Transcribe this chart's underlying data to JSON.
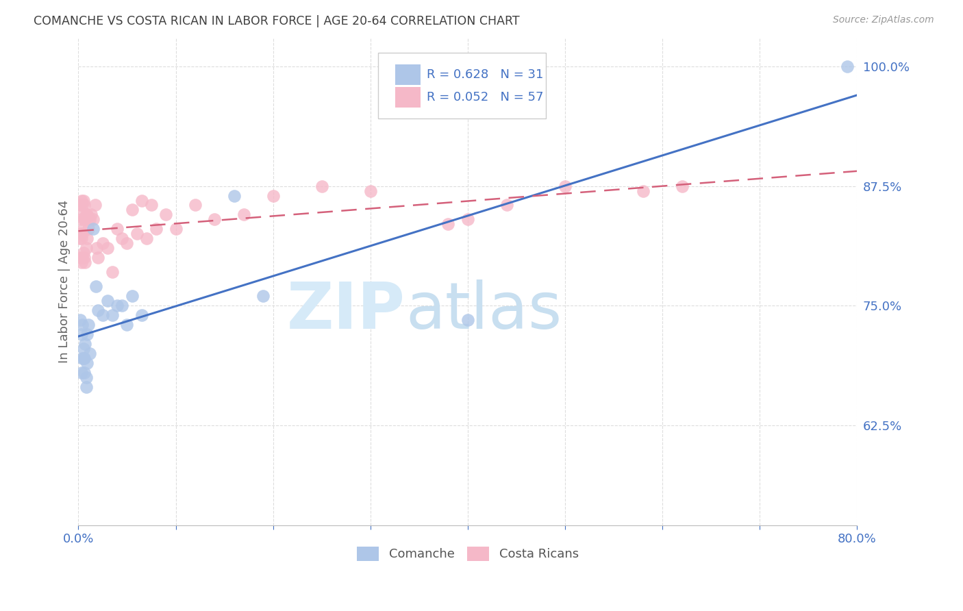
{
  "title": "COMANCHE VS COSTA RICAN IN LABOR FORCE | AGE 20-64 CORRELATION CHART",
  "source": "Source: ZipAtlas.com",
  "ylabel": "In Labor Force | Age 20-64",
  "xlim": [
    0.0,
    0.8
  ],
  "ylim": [
    0.52,
    1.03
  ],
  "xticks": [
    0.0,
    0.1,
    0.2,
    0.3,
    0.4,
    0.5,
    0.6,
    0.7,
    0.8
  ],
  "xticklabels": [
    "0.0%",
    "",
    "",
    "",
    "",
    "",
    "",
    "",
    "80.0%"
  ],
  "yticks": [
    0.625,
    0.75,
    0.875,
    1.0
  ],
  "yticklabels": [
    "62.5%",
    "75.0%",
    "87.5%",
    "100.0%"
  ],
  "comanche_x": [
    0.002,
    0.003,
    0.003,
    0.004,
    0.004,
    0.005,
    0.005,
    0.006,
    0.006,
    0.007,
    0.008,
    0.008,
    0.009,
    0.009,
    0.01,
    0.012,
    0.015,
    0.018,
    0.02,
    0.025,
    0.03,
    0.035,
    0.04,
    0.045,
    0.05,
    0.055,
    0.065,
    0.16,
    0.19,
    0.4,
    0.79
  ],
  "comanche_y": [
    0.735,
    0.72,
    0.68,
    0.695,
    0.73,
    0.695,
    0.705,
    0.68,
    0.695,
    0.71,
    0.665,
    0.675,
    0.69,
    0.72,
    0.73,
    0.7,
    0.83,
    0.77,
    0.745,
    0.74,
    0.755,
    0.74,
    0.75,
    0.75,
    0.73,
    0.76,
    0.74,
    0.865,
    0.76,
    0.735,
    1.0
  ],
  "costarican_x": [
    0.001,
    0.001,
    0.002,
    0.002,
    0.002,
    0.003,
    0.003,
    0.003,
    0.003,
    0.004,
    0.004,
    0.004,
    0.005,
    0.005,
    0.005,
    0.006,
    0.006,
    0.006,
    0.007,
    0.007,
    0.008,
    0.008,
    0.009,
    0.009,
    0.01,
    0.012,
    0.013,
    0.015,
    0.017,
    0.019,
    0.02,
    0.025,
    0.03,
    0.035,
    0.04,
    0.045,
    0.05,
    0.055,
    0.06,
    0.065,
    0.07,
    0.075,
    0.08,
    0.09,
    0.1,
    0.12,
    0.14,
    0.17,
    0.2,
    0.25,
    0.3,
    0.38,
    0.4,
    0.44,
    0.5,
    0.58,
    0.62
  ],
  "costarican_y": [
    0.82,
    0.845,
    0.8,
    0.825,
    0.855,
    0.795,
    0.82,
    0.84,
    0.86,
    0.8,
    0.825,
    0.855,
    0.805,
    0.83,
    0.86,
    0.8,
    0.84,
    0.855,
    0.795,
    0.84,
    0.81,
    0.845,
    0.82,
    0.845,
    0.83,
    0.84,
    0.845,
    0.84,
    0.855,
    0.81,
    0.8,
    0.815,
    0.81,
    0.785,
    0.83,
    0.82,
    0.815,
    0.85,
    0.825,
    0.86,
    0.82,
    0.855,
    0.83,
    0.845,
    0.83,
    0.855,
    0.84,
    0.845,
    0.865,
    0.875,
    0.87,
    0.835,
    0.84,
    0.855,
    0.875,
    0.87,
    0.875
  ],
  "comanche_color": "#aec6e8",
  "costarican_color": "#f5b8c8",
  "comanche_edge_color": "#aec6e8",
  "costarican_edge_color": "#f5b8c8",
  "comanche_line_color": "#4472c4",
  "costarican_line_color": "#d4607a",
  "comanche_R": 0.628,
  "comanche_N": 31,
  "costarican_R": 0.052,
  "costarican_N": 57,
  "legend_color": "#4472c4",
  "watermark_zip": "ZIP",
  "watermark_atlas": "atlas",
  "watermark_color": "#d6eaf8",
  "title_color": "#404040",
  "axis_tick_color": "#4472c4",
  "ylabel_color": "#666666",
  "grid_color": "#dddddd",
  "bottom_legend_color": "#555555"
}
